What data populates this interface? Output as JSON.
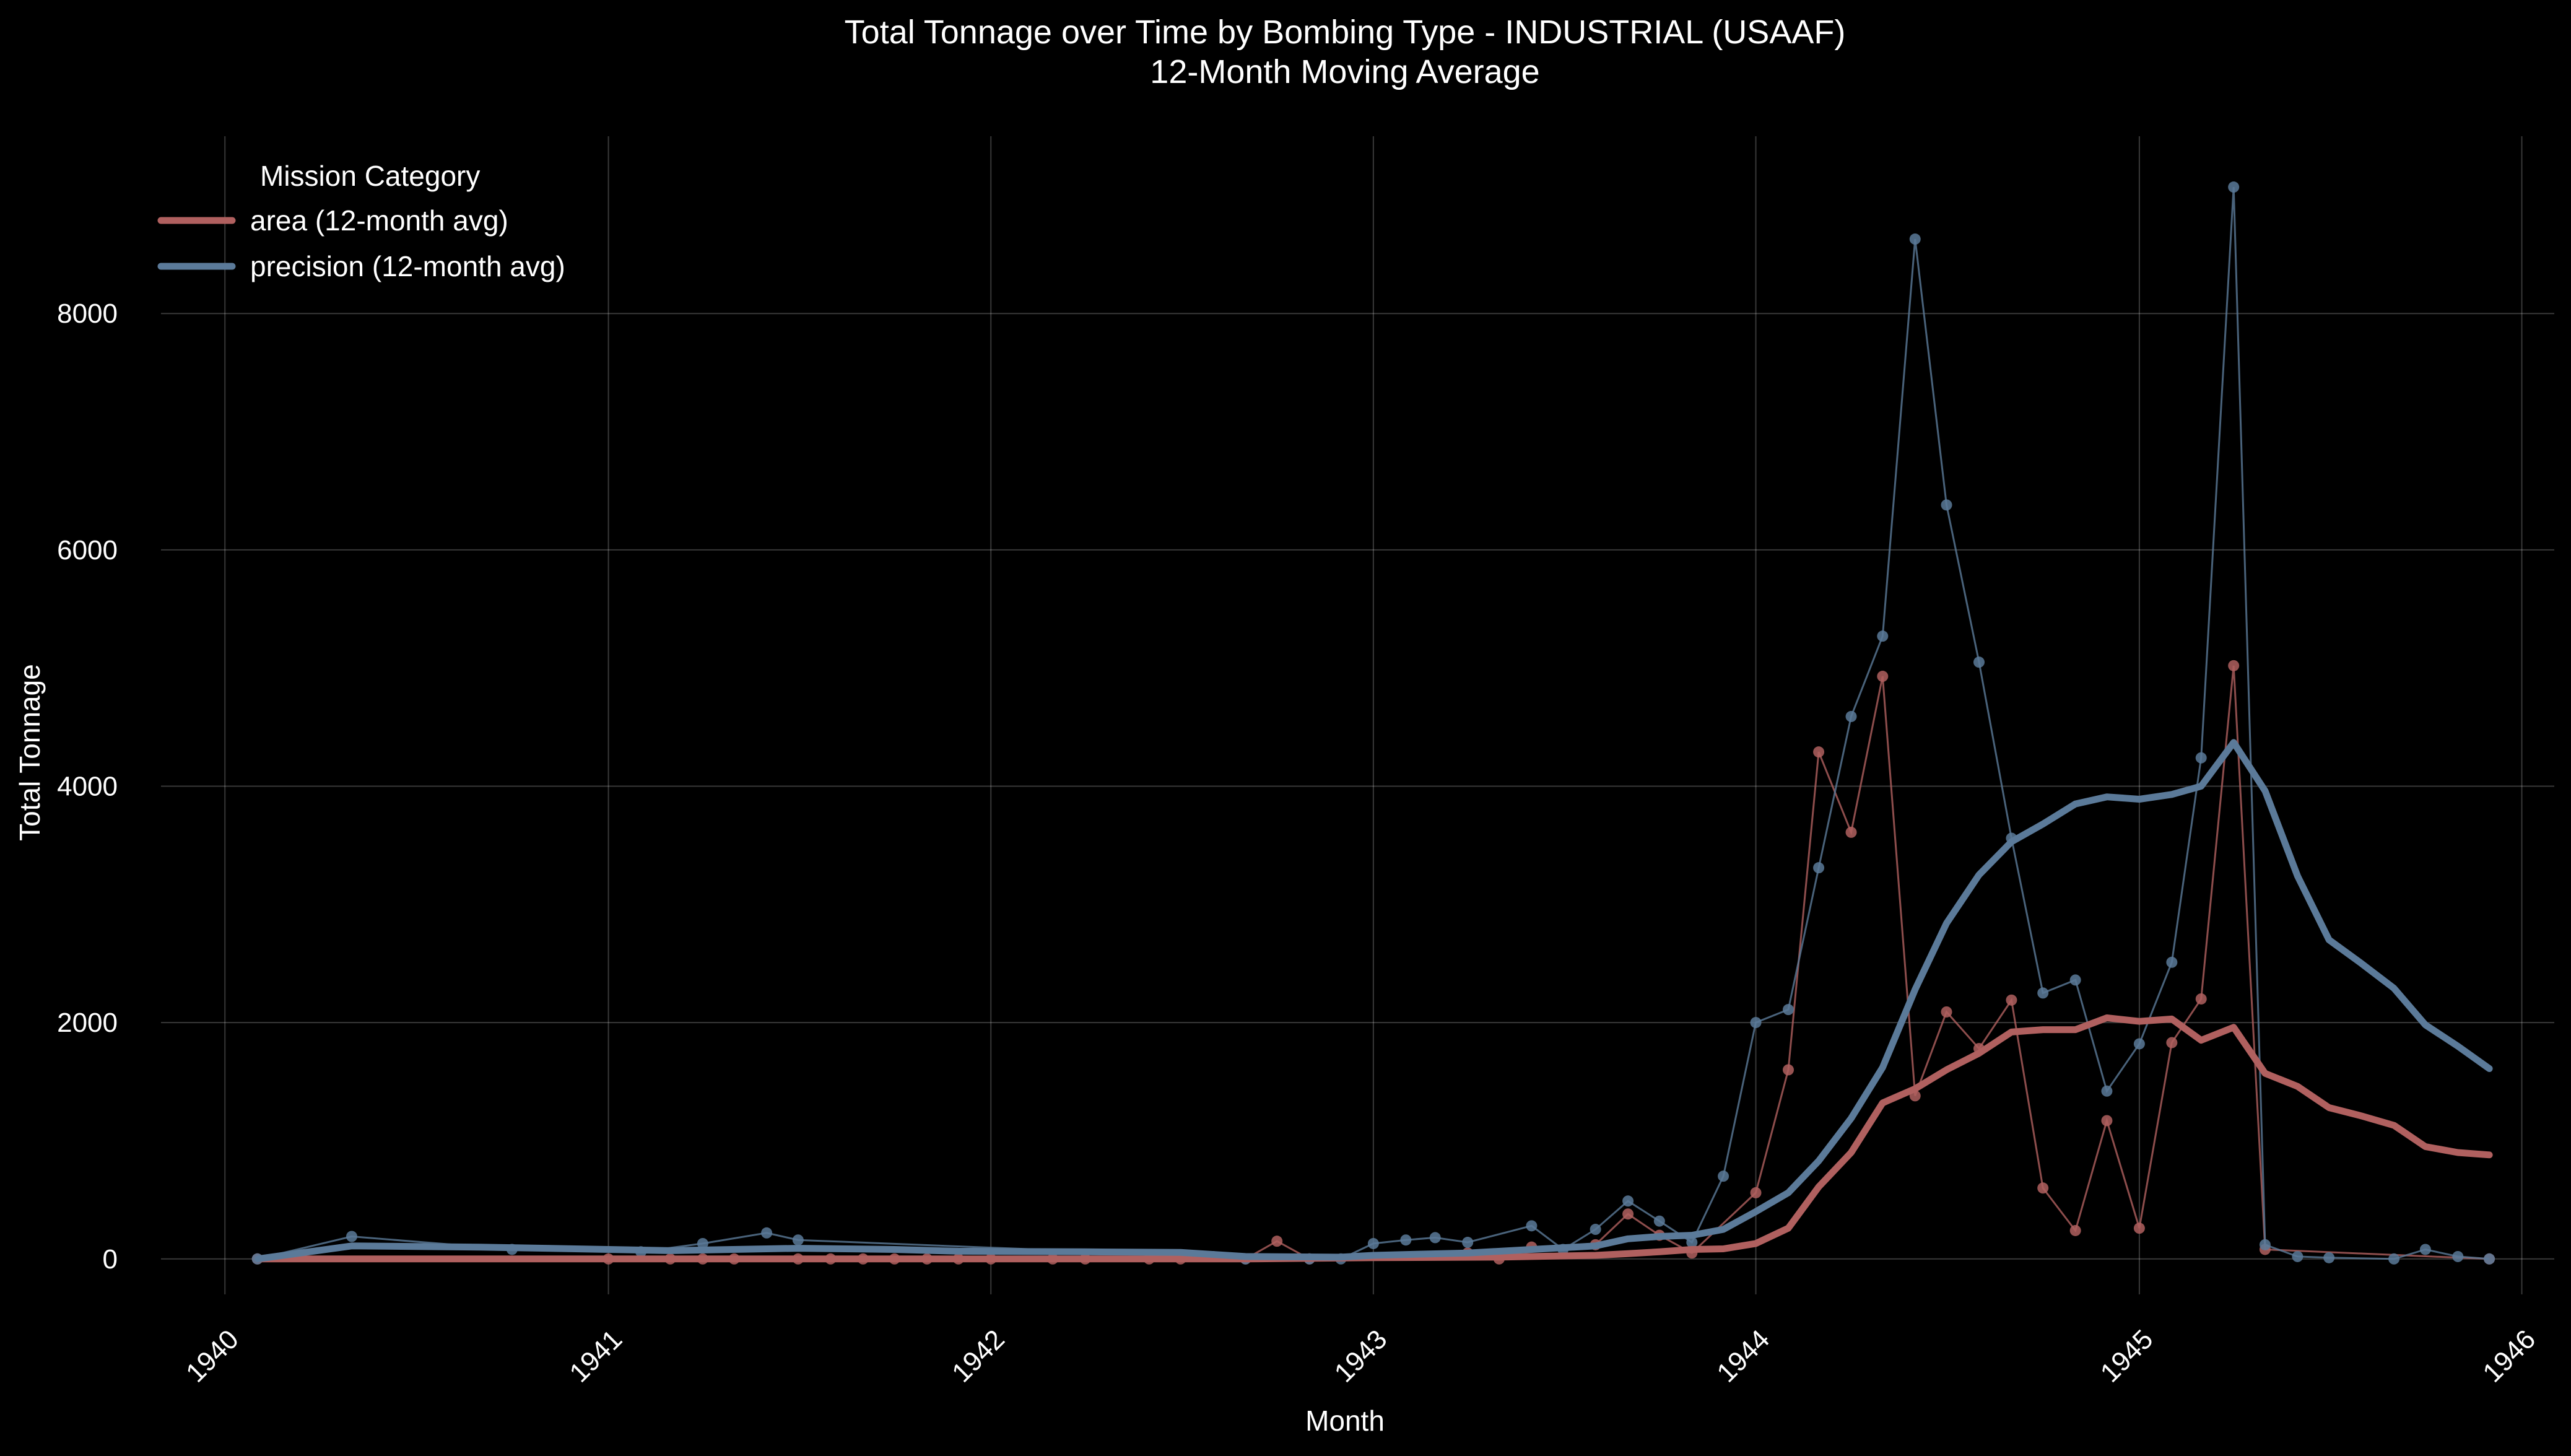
{
  "chart_data": {
    "type": "line",
    "title": "Total Tonnage over Time by Bombing Type - INDUSTRIAL  (USAAF)",
    "subtitle": "12-Month Moving Average",
    "xlabel": "Month",
    "ylabel": "Total Tonnage",
    "xlim": [
      "1939-11-01",
      "1946-02-01"
    ],
    "ylim": [
      -300,
      9500
    ],
    "x_ticks": [
      "1940",
      "1941",
      "1942",
      "1943",
      "1944",
      "1945",
      "1946"
    ],
    "y_ticks": [
      0,
      2000,
      4000,
      6000,
      8000
    ],
    "grid": true,
    "legend": {
      "title": "Mission Category",
      "position": "top-left",
      "entries": [
        "area (12-month avg)",
        "precision (12-month avg)"
      ]
    },
    "series": [
      {
        "name": "area (12-month avg)",
        "color": "#b0605f",
        "monthly_points": [
          [
            "1940-02-01",
            0
          ],
          [
            "1941-01-01",
            0
          ],
          [
            "1941-03-01",
            0
          ],
          [
            "1941-04-01",
            0
          ],
          [
            "1941-05-01",
            0
          ],
          [
            "1941-07-01",
            0
          ],
          [
            "1941-08-01",
            0
          ],
          [
            "1941-09-01",
            0
          ],
          [
            "1941-10-01",
            0
          ],
          [
            "1941-11-01",
            0
          ],
          [
            "1941-12-01",
            0
          ],
          [
            "1942-01-01",
            0
          ],
          [
            "1942-03-01",
            0
          ],
          [
            "1942-04-01",
            0
          ],
          [
            "1942-06-01",
            0
          ],
          [
            "1942-07-01",
            0
          ],
          [
            "1942-09-01",
            0
          ],
          [
            "1942-10-01",
            150
          ],
          [
            "1942-11-01",
            0
          ],
          [
            "1943-04-01",
            50
          ],
          [
            "1943-05-01",
            0
          ],
          [
            "1943-06-01",
            100
          ],
          [
            "1943-08-01",
            120
          ],
          [
            "1943-09-01",
            380
          ],
          [
            "1943-10-01",
            200
          ],
          [
            "1943-11-01",
            50
          ],
          [
            "1944-01-01",
            560
          ],
          [
            "1944-02-01",
            1600
          ],
          [
            "1944-03-01",
            4290
          ],
          [
            "1944-04-01",
            3610
          ],
          [
            "1944-05-01",
            4930
          ],
          [
            "1944-06-01",
            1380
          ],
          [
            "1944-07-01",
            2090
          ],
          [
            "1944-08-01",
            1780
          ],
          [
            "1944-09-01",
            2190
          ],
          [
            "1944-10-01",
            600
          ],
          [
            "1944-11-01",
            240
          ],
          [
            "1944-12-01",
            1170
          ],
          [
            "1945-01-01",
            260
          ],
          [
            "1945-02-01",
            1830
          ],
          [
            "1945-03-01",
            2200
          ],
          [
            "1945-04-01",
            5020
          ],
          [
            "1945-05-01",
            80
          ],
          [
            "1945-12-01",
            0
          ]
        ],
        "moving_avg": [
          [
            "1940-02-01",
            0
          ],
          [
            "1941-01-01",
            0
          ],
          [
            "1942-01-01",
            0
          ],
          [
            "1942-09-01",
            0
          ],
          [
            "1943-01-01",
            10
          ],
          [
            "1943-05-01",
            15
          ],
          [
            "1943-08-01",
            30
          ],
          [
            "1943-09-01",
            45
          ],
          [
            "1943-10-01",
            60
          ],
          [
            "1943-11-01",
            80
          ],
          [
            "1943-12-01",
            85
          ],
          [
            "1944-01-01",
            130
          ],
          [
            "1944-02-01",
            260
          ],
          [
            "1944-03-01",
            610
          ],
          [
            "1944-04-01",
            900
          ],
          [
            "1944-05-01",
            1320
          ],
          [
            "1944-06-01",
            1440
          ],
          [
            "1944-07-01",
            1600
          ],
          [
            "1944-08-01",
            1740
          ],
          [
            "1944-09-01",
            1920
          ],
          [
            "1944-10-01",
            1940
          ],
          [
            "1944-11-01",
            1940
          ],
          [
            "1944-12-01",
            2040
          ],
          [
            "1945-01-01",
            2010
          ],
          [
            "1945-02-01",
            2030
          ],
          [
            "1945-03-01",
            1850
          ],
          [
            "1945-04-01",
            1960
          ],
          [
            "1945-05-01",
            1570
          ],
          [
            "1945-06-01",
            1460
          ],
          [
            "1945-07-01",
            1280
          ],
          [
            "1945-08-01",
            1210
          ],
          [
            "1945-09-01",
            1130
          ],
          [
            "1945-10-01",
            950
          ],
          [
            "1945-11-01",
            900
          ],
          [
            "1945-12-01",
            880
          ]
        ]
      },
      {
        "name": "precision (12-month avg)",
        "color": "#5b7a99",
        "monthly_points": [
          [
            "1940-02-01",
            0
          ],
          [
            "1940-05-01",
            190
          ],
          [
            "1940-10-01",
            80
          ],
          [
            "1941-02-01",
            60
          ],
          [
            "1941-04-01",
            130
          ],
          [
            "1941-06-01",
            220
          ],
          [
            "1941-07-01",
            160
          ],
          [
            "1942-08-01",
            20
          ],
          [
            "1942-09-01",
            0
          ],
          [
            "1942-11-01",
            0
          ],
          [
            "1942-12-01",
            0
          ],
          [
            "1943-01-01",
            130
          ],
          [
            "1943-02-01",
            160
          ],
          [
            "1943-03-01",
            180
          ],
          [
            "1943-04-01",
            140
          ],
          [
            "1943-06-01",
            280
          ],
          [
            "1943-07-01",
            80
          ],
          [
            "1943-08-01",
            250
          ],
          [
            "1943-09-01",
            490
          ],
          [
            "1943-10-01",
            320
          ],
          [
            "1943-11-01",
            140
          ],
          [
            "1943-12-01",
            700
          ],
          [
            "1944-01-01",
            2000
          ],
          [
            "1944-02-01",
            2110
          ],
          [
            "1944-03-01",
            3310
          ],
          [
            "1944-04-01",
            4590
          ],
          [
            "1944-05-01",
            5270
          ],
          [
            "1944-06-01",
            8630
          ],
          [
            "1944-07-01",
            6380
          ],
          [
            "1944-08-01",
            5050
          ],
          [
            "1944-09-01",
            3560
          ],
          [
            "1944-10-01",
            2250
          ],
          [
            "1944-11-01",
            2360
          ],
          [
            "1944-12-01",
            1420
          ],
          [
            "1945-01-01",
            1820
          ],
          [
            "1945-02-01",
            2510
          ],
          [
            "1945-03-01",
            4240
          ],
          [
            "1945-04-01",
            9070
          ],
          [
            "1945-05-01",
            120
          ],
          [
            "1945-06-01",
            20
          ],
          [
            "1945-07-01",
            10
          ],
          [
            "1945-09-01",
            0
          ],
          [
            "1945-10-01",
            80
          ],
          [
            "1945-11-01",
            20
          ],
          [
            "1945-12-01",
            0
          ]
        ],
        "moving_avg": [
          [
            "1940-02-01",
            0
          ],
          [
            "1940-05-01",
            110
          ],
          [
            "1940-09-01",
            100
          ],
          [
            "1941-01-01",
            80
          ],
          [
            "1941-03-01",
            70
          ],
          [
            "1941-07-01",
            90
          ],
          [
            "1941-10-01",
            80
          ],
          [
            "1941-12-01",
            65
          ],
          [
            "1942-04-01",
            60
          ],
          [
            "1942-07-01",
            55
          ],
          [
            "1942-09-01",
            20
          ],
          [
            "1942-12-01",
            15
          ],
          [
            "1943-01-01",
            30
          ],
          [
            "1943-04-01",
            50
          ],
          [
            "1943-06-01",
            80
          ],
          [
            "1943-08-01",
            110
          ],
          [
            "1943-09-01",
            170
          ],
          [
            "1943-10-01",
            190
          ],
          [
            "1943-11-01",
            200
          ],
          [
            "1943-12-01",
            250
          ],
          [
            "1944-01-01",
            400
          ],
          [
            "1944-02-01",
            560
          ],
          [
            "1944-03-01",
            830
          ],
          [
            "1944-04-01",
            1190
          ],
          [
            "1944-05-01",
            1620
          ],
          [
            "1944-06-01",
            2280
          ],
          [
            "1944-07-01",
            2840
          ],
          [
            "1944-08-01",
            3250
          ],
          [
            "1944-09-01",
            3530
          ],
          [
            "1944-10-01",
            3680
          ],
          [
            "1944-11-01",
            3850
          ],
          [
            "1944-12-01",
            3910
          ],
          [
            "1945-01-01",
            3890
          ],
          [
            "1945-02-01",
            3930
          ],
          [
            "1945-03-01",
            4000
          ],
          [
            "1945-04-01",
            4370
          ],
          [
            "1945-05-01",
            3960
          ],
          [
            "1945-06-01",
            3240
          ],
          [
            "1945-07-01",
            2700
          ],
          [
            "1945-08-01",
            2500
          ],
          [
            "1945-09-01",
            2290
          ],
          [
            "1945-10-01",
            1980
          ],
          [
            "1945-11-01",
            1800
          ],
          [
            "1945-12-01",
            1610
          ]
        ]
      }
    ]
  }
}
